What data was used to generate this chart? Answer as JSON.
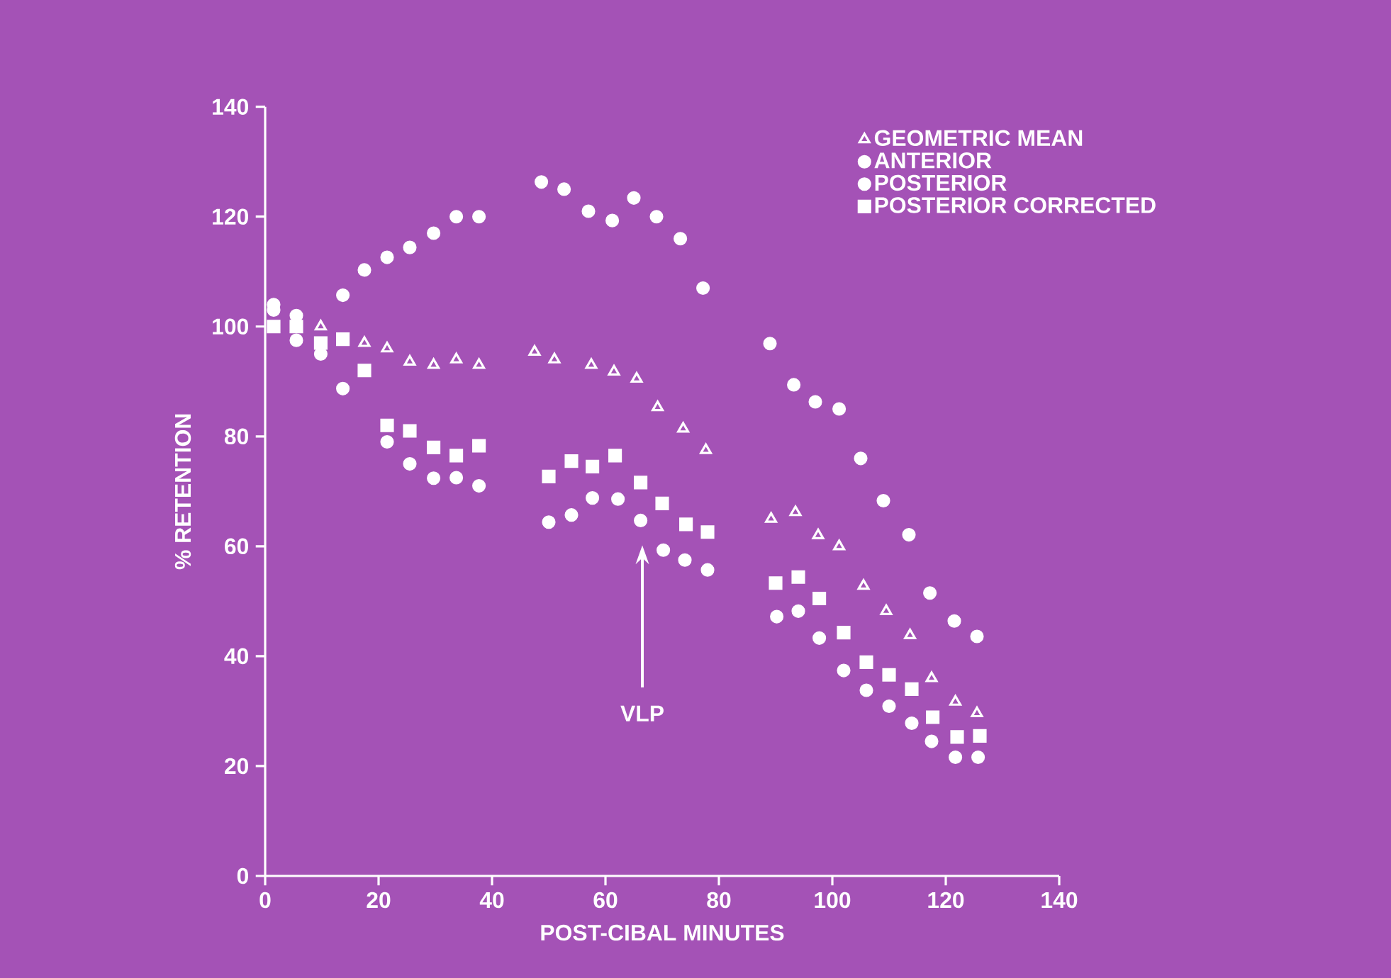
{
  "chart_data": {
    "type": "scatter",
    "xlabel": "POST-CIBAL MINUTES",
    "ylabel": "% RETENTION",
    "xlim": [
      0,
      140
    ],
    "ylim": [
      0,
      140
    ],
    "xticks": [
      0,
      20,
      40,
      60,
      80,
      100,
      120,
      140
    ],
    "yticks": [
      0,
      20,
      40,
      60,
      80,
      100,
      120,
      140
    ],
    "legend": "top right",
    "annotations": [
      "VLP"
    ],
    "series": [
      {
        "name": "GEOMETRIC MEAN",
        "color": "#ffffff",
        "marker": "triangle",
        "x": [
          9.8,
          17.5,
          21.5,
          25.5,
          29.7,
          33.7,
          37.7,
          47.5,
          51,
          57.5,
          61.5,
          65.5,
          69.2,
          73.7,
          77.7,
          89.2,
          93.5,
          97.5,
          101.2,
          105.5,
          109.5,
          113.7,
          117.5,
          121.7,
          125.5
        ],
        "values": [
          100,
          97,
          96,
          93.6,
          93,
          94,
          93,
          95.4,
          94,
          93,
          91.8,
          90.5,
          85.3,
          81.4,
          77.5,
          65,
          66.2,
          62,
          60,
          52.8,
          48.2,
          43.8,
          36,
          31.7,
          29.6
        ]
      },
      {
        "name": "ANTERIOR",
        "color": "#ffffff",
        "marker": "circle",
        "x": [
          1.5,
          5.5,
          13.7,
          17.5,
          21.5,
          25.5,
          29.7,
          33.7,
          37.7,
          48.7,
          52.7,
          57,
          61.2,
          65,
          69,
          73.2,
          77.2,
          89,
          93.2,
          97,
          101.2,
          105,
          109,
          113.5,
          117.2,
          121.5,
          125.5
        ],
        "values": [
          104,
          102,
          105.7,
          110.3,
          112.6,
          114.4,
          117,
          120,
          120,
          126.3,
          125,
          121,
          119.3,
          123.4,
          120,
          116,
          107,
          96.9,
          89.4,
          86.3,
          85,
          76,
          68.3,
          62.1,
          51.5,
          46.4,
          43.6
        ]
      },
      {
        "name": "POSTERIOR",
        "color": "#ffffff",
        "marker": "circle",
        "x": [
          1.5,
          5.5,
          9.8,
          13.7,
          21.5,
          25.5,
          29.7,
          33.7,
          37.7,
          50,
          54,
          57.7,
          62.2,
          66.2,
          70.2,
          74,
          78,
          90.2,
          94,
          97.7,
          102,
          106,
          110,
          114,
          117.5,
          121.7,
          125.7
        ],
        "values": [
          103,
          97.5,
          95,
          88.7,
          79,
          75,
          72.4,
          72.5,
          71,
          64.4,
          65.7,
          68.8,
          68.6,
          64.7,
          59.3,
          57.5,
          55.7,
          47.2,
          48.2,
          43.3,
          37.4,
          33.8,
          30.9,
          27.8,
          24.5,
          21.6,
          21.6
        ]
      },
      {
        "name": "POSTERIOR CORRECTED",
        "color": "#ffffff",
        "marker": "square",
        "x": [
          1.5,
          5.5,
          9.8,
          13.7,
          17.5,
          21.5,
          25.5,
          29.7,
          33.7,
          37.7,
          50,
          54,
          57.7,
          61.7,
          66.2,
          70,
          74.2,
          78,
          90,
          94,
          97.7,
          102,
          106,
          110,
          114,
          117.7,
          122,
          126
        ],
        "values": [
          100,
          100,
          97,
          97.7,
          92,
          82,
          81,
          78,
          76.5,
          78.3,
          72.7,
          75.5,
          74.5,
          76.5,
          71.6,
          67.8,
          64,
          62.6,
          53.3,
          54.4,
          50.5,
          44.3,
          38.9,
          36.6,
          34,
          28.9,
          25.3,
          25.5
        ]
      }
    ]
  }
}
